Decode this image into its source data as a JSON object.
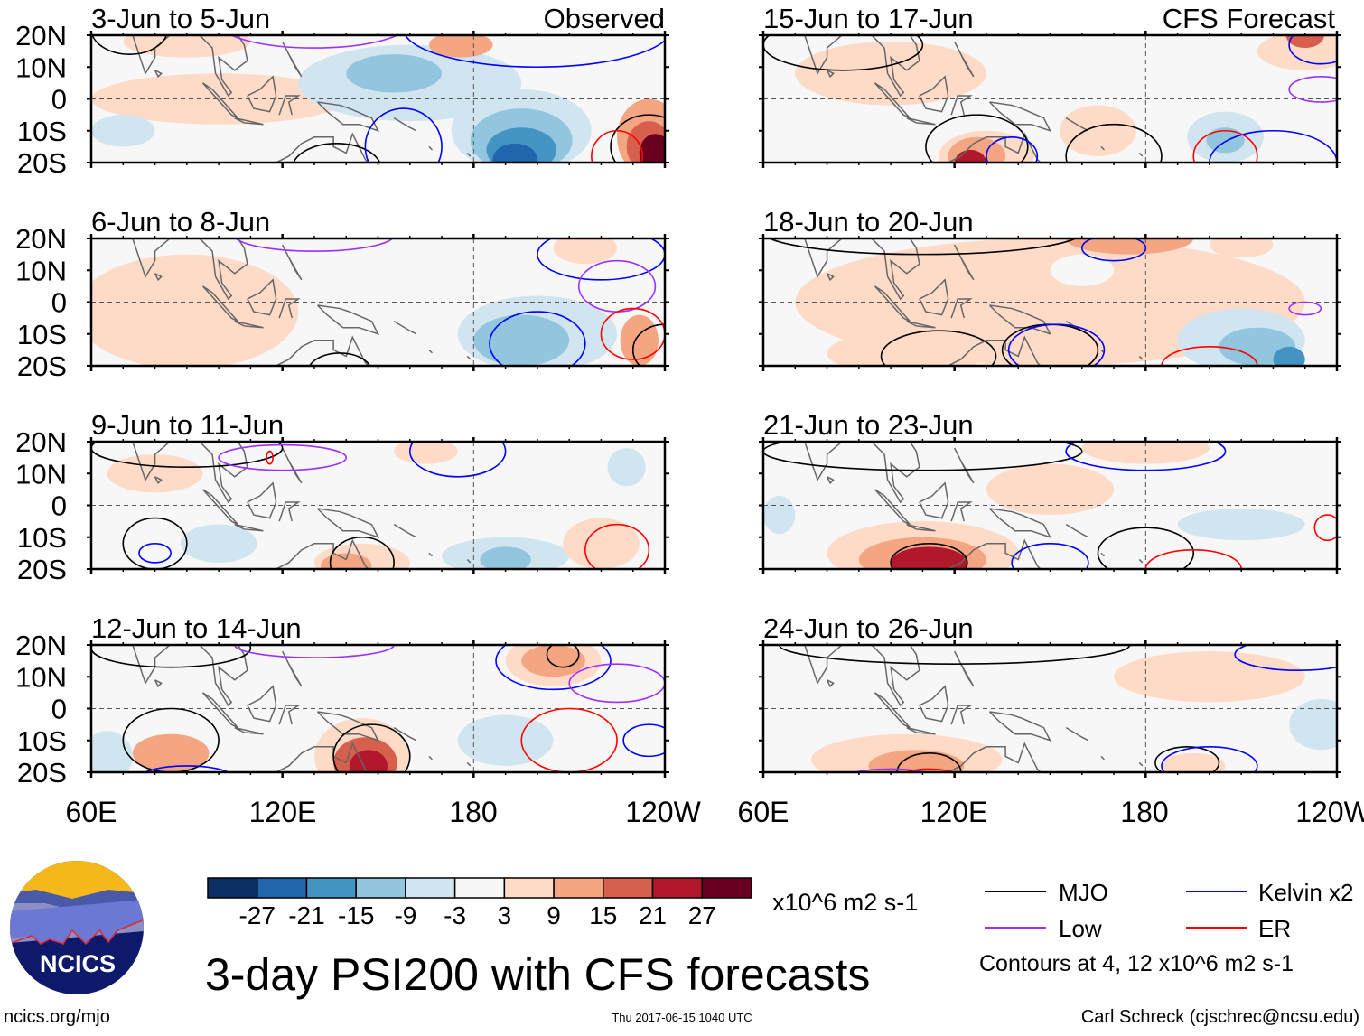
{
  "title": "3-day PSI200 with CFS forecasts",
  "footer": {
    "site": "ncics.org/mjo",
    "timestamp": "Thu 2017-06-15 1040 UTC",
    "author": "Carl Schreck (cjschrec@ncsu.edu)"
  },
  "logo": {
    "text": "NCICS"
  },
  "column_labels": {
    "observed": "Observed",
    "forecast": "CFS Forecast"
  },
  "lat_labels": [
    "20N",
    "10N",
    "0",
    "10S",
    "20S"
  ],
  "lon_labels": [
    "60E",
    "120E",
    "180",
    "120W"
  ],
  "colorbar": {
    "labels": [
      "-27",
      "-21",
      "-15",
      "-9",
      "-3",
      "3",
      "9",
      "15",
      "21",
      "27"
    ],
    "colors": [
      "#0a2f64",
      "#2166ac",
      "#4393c3",
      "#92c5de",
      "#d1e5f0",
      "#f7f7f7",
      "#fddbc7",
      "#f4a582",
      "#d6604d",
      "#b2182b",
      "#67001f"
    ],
    "units": "x10^6 m2 s-1"
  },
  "legend": {
    "items": [
      {
        "label": "MJO",
        "color": "#000000"
      },
      {
        "label": "Kelvin x2",
        "color": "#0000ff"
      },
      {
        "label": "Low",
        "color": "#9b30ff"
      },
      {
        "label": "ER",
        "color": "#ff0000"
      }
    ],
    "note": "Contours at 4, 12 x10^6 m2 s-1"
  },
  "chart_data": {
    "type": "heatmap",
    "variable": "PSI200 anomaly",
    "lon_range": [
      60,
      240
    ],
    "lat_range": [
      -20,
      20
    ],
    "panels": [
      {
        "title": "3-Jun to 5-Jun",
        "kind": "Observed",
        "blobs": [
          [
            100,
            0,
            40,
            8,
            4
          ],
          [
            90,
            18,
            20,
            5,
            4
          ],
          [
            160,
            5,
            35,
            12,
            -4
          ],
          [
            155,
            8,
            15,
            6,
            -10
          ],
          [
            195,
            -10,
            22,
            13,
            -5
          ],
          [
            195,
            -13,
            16,
            10,
            -12
          ],
          [
            195,
            -16,
            11,
            7,
            -18
          ],
          [
            193,
            -19,
            7,
            5,
            -24
          ],
          [
            235,
            -12,
            10,
            12,
            12
          ],
          [
            235,
            -15,
            7,
            8,
            18
          ],
          [
            237,
            -17,
            5,
            6,
            30
          ],
          [
            176,
            17,
            10,
            4,
            10
          ],
          [
            70,
            -10,
            10,
            5,
            -4
          ]
        ],
        "contours": [
          [
            72,
            22,
            12,
            8,
            "MJO"
          ],
          [
            137,
            -22,
            14,
            8,
            "MJO"
          ],
          [
            235,
            -15,
            12,
            10,
            "MJO"
          ],
          [
            158,
            -15,
            12,
            12,
            "Kelvin"
          ],
          [
            200,
            22,
            42,
            12,
            "Kelvin"
          ],
          [
            130,
            24,
            30,
            8,
            "Low"
          ],
          [
            225,
            -18,
            8,
            8,
            "ER"
          ]
        ]
      },
      {
        "title": "15-Jun to 17-Jun",
        "kind": "CFS Forecast",
        "blobs": [
          [
            100,
            8,
            30,
            10,
            4
          ],
          [
            130,
            -18,
            15,
            8,
            6
          ],
          [
            127,
            -18,
            9,
            6,
            14
          ],
          [
            125,
            -20,
            5,
            4,
            24
          ],
          [
            165,
            -10,
            12,
            8,
            8
          ],
          [
            205,
            -12,
            12,
            8,
            -6
          ],
          [
            205,
            -13,
            6,
            4,
            -12
          ],
          [
            230,
            15,
            15,
            6,
            6
          ],
          [
            230,
            20,
            6,
            4,
            16
          ]
        ],
        "contours": [
          [
            85,
            17,
            25,
            8,
            "MJO"
          ],
          [
            127,
            -15,
            16,
            10,
            "MJO"
          ],
          [
            170,
            -18,
            15,
            10,
            "MJO"
          ],
          [
            138,
            -18,
            8,
            6,
            "Kelvin"
          ],
          [
            235,
            17,
            10,
            6,
            "Kelvin"
          ],
          [
            220,
            -20,
            20,
            10,
            "Kelvin"
          ],
          [
            235,
            3,
            10,
            4,
            "Low"
          ],
          [
            205,
            -18,
            10,
            8,
            "ER"
          ]
        ]
      },
      {
        "title": "6-Jun to 8-Jun",
        "kind": "Observed",
        "blobs": [
          [
            90,
            -3,
            35,
            18,
            4
          ],
          [
            200,
            -10,
            25,
            12,
            -5
          ],
          [
            195,
            -12,
            15,
            8,
            -10
          ],
          [
            232,
            -12,
            6,
            8,
            14
          ],
          [
            215,
            17,
            10,
            5,
            8
          ],
          [
            160,
            10,
            20,
            8,
            -3
          ]
        ],
        "contours": [
          [
            240,
            -15,
            10,
            8,
            "MJO"
          ],
          [
            138,
            -22,
            10,
            6,
            "MJO"
          ],
          [
            200,
            -13,
            15,
            10,
            "Kelvin"
          ],
          [
            220,
            15,
            20,
            8,
            "Kelvin"
          ],
          [
            225,
            5,
            12,
            8,
            "Low"
          ],
          [
            130,
            21,
            25,
            5,
            "Low"
          ],
          [
            230,
            -10,
            10,
            8,
            "ER"
          ]
        ]
      },
      {
        "title": "18-Jun to 20-Jun",
        "kind": "CFS Forecast",
        "blobs": [
          [
            150,
            0,
            80,
            20,
            3
          ],
          [
            105,
            -16,
            25,
            7,
            8
          ],
          [
            175,
            20,
            20,
            5,
            10
          ],
          [
            210,
            18,
            10,
            4,
            8
          ],
          [
            210,
            -12,
            20,
            10,
            -6
          ],
          [
            215,
            -14,
            12,
            6,
            -12
          ],
          [
            225,
            -18,
            5,
            4,
            -18
          ],
          [
            160,
            10,
            10,
            5,
            -3
          ]
        ],
        "contours": [
          [
            115,
            -17,
            18,
            8,
            "MJO"
          ],
          [
            150,
            -15,
            15,
            8,
            "MJO"
          ],
          [
            110,
            22,
            50,
            7,
            "MJO"
          ],
          [
            152,
            -15,
            15,
            8,
            "Kelvin"
          ],
          [
            170,
            17,
            10,
            4,
            "Kelvin"
          ],
          [
            230,
            -2,
            5,
            2,
            "Low"
          ],
          [
            200,
            -20,
            15,
            6,
            "ER"
          ]
        ]
      },
      {
        "title": "9-Jun to 11-Jun",
        "kind": "Observed",
        "blobs": [
          [
            80,
            10,
            15,
            6,
            8
          ],
          [
            145,
            -18,
            15,
            6,
            6
          ],
          [
            140,
            -19,
            8,
            4,
            14
          ],
          [
            190,
            -16,
            20,
            6,
            -6
          ],
          [
            190,
            -17,
            8,
            4,
            -12
          ],
          [
            100,
            -12,
            12,
            6,
            -4
          ],
          [
            165,
            17,
            10,
            4,
            6
          ],
          [
            220,
            -12,
            12,
            8,
            8
          ],
          [
            228,
            12,
            6,
            6,
            -6
          ]
        ],
        "contours": [
          [
            80,
            -12,
            10,
            8,
            "MJO"
          ],
          [
            145,
            -18,
            10,
            8,
            "MJO"
          ],
          [
            90,
            18,
            30,
            6,
            "MJO"
          ],
          [
            80,
            -15,
            5,
            3,
            "Kelvin"
          ],
          [
            175,
            17,
            15,
            8,
            "Kelvin"
          ],
          [
            120,
            15,
            20,
            4,
            "Low"
          ],
          [
            225,
            -14,
            10,
            8,
            "ER"
          ],
          [
            116,
            15,
            1,
            2,
            "ER"
          ]
        ]
      },
      {
        "title": "21-Jun to 23-Jun",
        "kind": "CFS Forecast",
        "blobs": [
          [
            110,
            -15,
            30,
            10,
            6
          ],
          [
            110,
            -17,
            20,
            7,
            12
          ],
          [
            112,
            -18,
            12,
            5,
            22
          ],
          [
            65,
            -3,
            5,
            6,
            -8
          ],
          [
            180,
            18,
            20,
            5,
            6
          ],
          [
            210,
            -6,
            20,
            5,
            -4
          ],
          [
            150,
            5,
            20,
            8,
            3
          ]
        ],
        "contours": [
          [
            112,
            -18,
            12,
            6,
            "MJO"
          ],
          [
            180,
            -15,
            15,
            8,
            "MJO"
          ],
          [
            110,
            17,
            50,
            6,
            "MJO"
          ],
          [
            180,
            17,
            25,
            6,
            "Kelvin"
          ],
          [
            150,
            -18,
            12,
            6,
            "Kelvin"
          ],
          [
            237,
            -7,
            4,
            4,
            "ER"
          ],
          [
            195,
            -20,
            15,
            6,
            "ER"
          ]
        ]
      },
      {
        "title": "12-Jun to 14-Jun",
        "kind": "Observed",
        "blobs": [
          [
            145,
            -15,
            15,
            12,
            8
          ],
          [
            146,
            -17,
            10,
            8,
            15
          ],
          [
            147,
            -18,
            6,
            5,
            22
          ],
          [
            85,
            -14,
            12,
            6,
            10
          ],
          [
            205,
            15,
            15,
            8,
            4
          ],
          [
            205,
            15,
            10,
            5,
            10
          ],
          [
            190,
            -10,
            15,
            8,
            -6
          ],
          [
            65,
            -15,
            8,
            8,
            -4
          ],
          [
            160,
            0,
            40,
            6,
            -3
          ]
        ],
        "contours": [
          [
            85,
            -10,
            15,
            10,
            "MJO"
          ],
          [
            148,
            -15,
            12,
            10,
            "MJO"
          ],
          [
            85,
            19,
            25,
            6,
            "MJO"
          ],
          [
            208,
            17,
            5,
            4,
            "MJO"
          ],
          [
            205,
            15,
            18,
            9,
            "Kelvin"
          ],
          [
            90,
            -22,
            15,
            4,
            "Kelvin"
          ],
          [
            235,
            -10,
            8,
            5,
            "Kelvin"
          ],
          [
            225,
            8,
            15,
            6,
            "Low"
          ],
          [
            130,
            20,
            25,
            4,
            "Low"
          ],
          [
            210,
            -10,
            15,
            10,
            "ER"
          ]
        ]
      },
      {
        "title": "24-Jun to 26-Jun",
        "kind": "CFS Forecast",
        "blobs": [
          [
            105,
            -16,
            30,
            8,
            5
          ],
          [
            108,
            -18,
            15,
            5,
            12
          ],
          [
            100,
            5,
            40,
            6,
            -3
          ],
          [
            195,
            -18,
            10,
            4,
            8
          ],
          [
            235,
            -5,
            10,
            8,
            -4
          ],
          [
            200,
            10,
            30,
            8,
            3
          ]
        ],
        "contours": [
          [
            112,
            -20,
            10,
            6,
            "MJO"
          ],
          [
            193,
            -17,
            10,
            5,
            "MJO"
          ],
          [
            120,
            20,
            55,
            6,
            "MJO"
          ],
          [
            200,
            -18,
            15,
            6,
            "Kelvin"
          ],
          [
            228,
            17,
            20,
            5,
            "Kelvin"
          ],
          [
            100,
            -22,
            15,
            3,
            "Low"
          ],
          [
            112,
            -22,
            10,
            3,
            "ER"
          ]
        ]
      }
    ]
  }
}
